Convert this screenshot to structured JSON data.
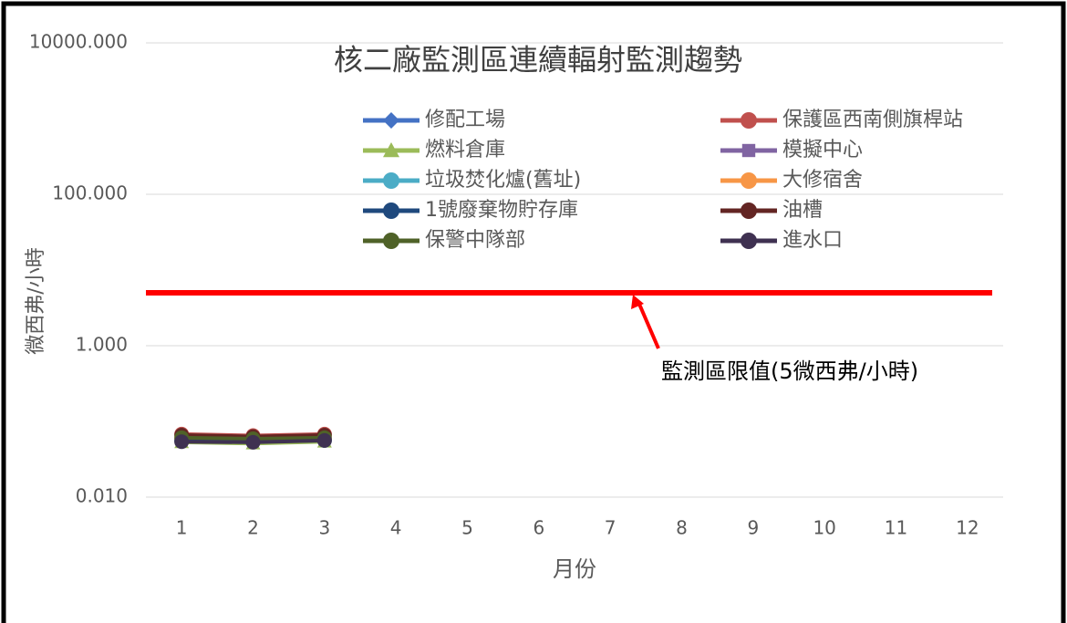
{
  "chart_data": {
    "type": "line",
    "title": "核二廠監測區連續輻射監測趨勢",
    "x_label": "月份",
    "y_label": "微西弗/小時",
    "categories": [
      "1",
      "2",
      "3",
      "4",
      "5",
      "6",
      "7",
      "8",
      "9",
      "10",
      "11",
      "12"
    ],
    "log_scale": true,
    "grid": true,
    "ylim": [
      0.01,
      10000
    ],
    "yticks": [
      {
        "value": 0.01,
        "label": "0.010"
      },
      {
        "value": 1,
        "label": "1.000"
      },
      {
        "value": 100,
        "label": "100.000"
      },
      {
        "value": 10000,
        "label": "10000.000"
      }
    ],
    "series": [
      {
        "name": "修配工場",
        "color": "#4472c4",
        "marker": "diamond",
        "values": [
          0.06,
          0.058,
          0.06,
          null,
          null,
          null,
          null,
          null,
          null,
          null,
          null,
          null
        ]
      },
      {
        "name": "保護區西南側旗桿站",
        "color": "#c0504d",
        "marker": "circle",
        "values": [
          0.068,
          0.065,
          0.068,
          null,
          null,
          null,
          null,
          null,
          null,
          null,
          null,
          null
        ]
      },
      {
        "name": "燃料倉庫",
        "color": "#9bbb59",
        "marker": "triangle",
        "values": [
          0.053,
          0.051,
          0.054,
          null,
          null,
          null,
          null,
          null,
          null,
          null,
          null,
          null
        ]
      },
      {
        "name": "模擬中心",
        "color": "#8064a2",
        "marker": "square",
        "values": [
          0.058,
          0.056,
          0.058,
          null,
          null,
          null,
          null,
          null,
          null,
          null,
          null,
          null
        ]
      },
      {
        "name": "垃圾焚化爐(舊址)",
        "color": "#4bacc6",
        "marker": "circle",
        "values": [
          0.057,
          0.055,
          0.057,
          null,
          null,
          null,
          null,
          null,
          null,
          null,
          null,
          null
        ]
      },
      {
        "name": "大修宿舍",
        "color": "#f79646",
        "marker": "circle",
        "values": [
          0.059,
          0.057,
          0.059,
          null,
          null,
          null,
          null,
          null,
          null,
          null,
          null,
          null
        ]
      },
      {
        "name": "1號廢棄物貯存庫",
        "color": "#1f497d",
        "marker": "circle",
        "values": [
          0.055,
          0.054,
          0.056,
          null,
          null,
          null,
          null,
          null,
          null,
          null,
          null,
          null
        ]
      },
      {
        "name": "油槽",
        "color": "#632523",
        "marker": "circle",
        "values": [
          0.066,
          0.063,
          0.066,
          null,
          null,
          null,
          null,
          null,
          null,
          null,
          null,
          null
        ]
      },
      {
        "name": "保警中隊部",
        "color": "#4f6228",
        "marker": "circle",
        "values": [
          0.061,
          0.059,
          0.061,
          null,
          null,
          null,
          null,
          null,
          null,
          null,
          null,
          null
        ]
      },
      {
        "name": "進水口",
        "color": "#3f3151",
        "marker": "circle",
        "values": [
          0.054,
          0.053,
          0.056,
          null,
          null,
          null,
          null,
          null,
          null,
          null,
          null,
          null
        ]
      }
    ],
    "reference_line": {
      "value": 5,
      "color": "#ff0000",
      "label": "監測區限值(5微西弗/小時)"
    }
  }
}
